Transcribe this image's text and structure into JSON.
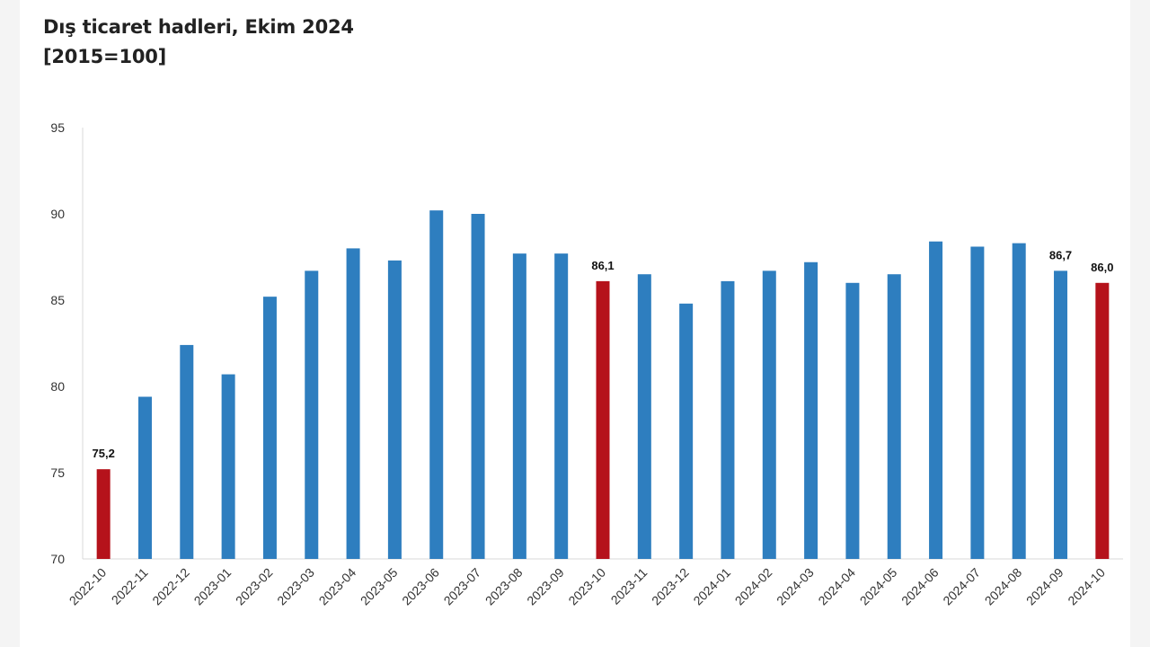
{
  "title": "Dış ticaret hadleri, Ekim 2024",
  "subtitle": "[2015=100]",
  "colors": {
    "default": "#2e7ebf",
    "highlight": "#b5121b"
  },
  "chart_data": {
    "type": "bar",
    "categories": [
      "2022-10",
      "2022-11",
      "2022-12",
      "2023-01",
      "2023-02",
      "2023-03",
      "2023-04",
      "2023-05",
      "2023-06",
      "2023-07",
      "2023-08",
      "2023-09",
      "2023-10",
      "2023-11",
      "2023-12",
      "2024-01",
      "2024-02",
      "2024-03",
      "2024-04",
      "2024-05",
      "2024-06",
      "2024-07",
      "2024-08",
      "2024-09",
      "2024-10"
    ],
    "values": [
      75.2,
      79.4,
      82.4,
      80.7,
      85.2,
      86.7,
      88.0,
      87.3,
      90.2,
      90.0,
      87.7,
      87.7,
      86.1,
      86.5,
      84.8,
      86.1,
      86.7,
      87.2,
      86.0,
      86.5,
      88.4,
      88.1,
      88.3,
      86.7,
      86.0
    ],
    "highlight": [
      true,
      false,
      false,
      false,
      false,
      false,
      false,
      false,
      false,
      false,
      false,
      false,
      true,
      false,
      false,
      false,
      false,
      false,
      false,
      false,
      false,
      false,
      false,
      false,
      true
    ],
    "data_labels": [
      "75,2",
      "",
      "",
      "",
      "",
      "",
      "",
      "",
      "",
      "",
      "",
      "",
      "86,1",
      "",
      "",
      "",
      "",
      "",
      "",
      "",
      "",
      "",
      "",
      "86,7",
      "86,0"
    ],
    "ylim": [
      70,
      95
    ],
    "yticks": [
      "70",
      "75",
      "80",
      "85",
      "90",
      "95"
    ],
    "xlabel": "",
    "ylabel": "",
    "grid": false,
    "legend": "none"
  }
}
